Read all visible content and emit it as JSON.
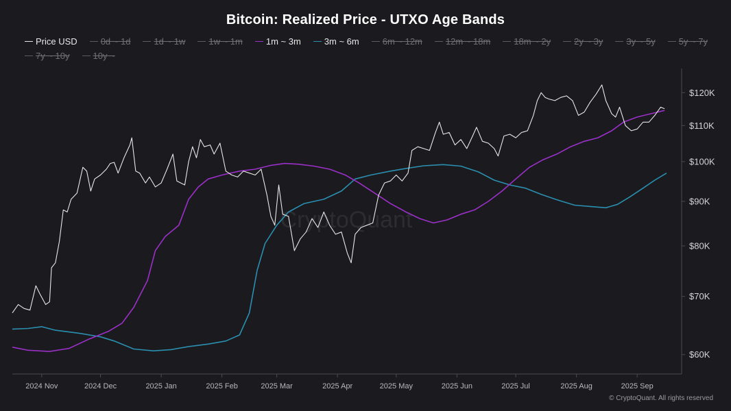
{
  "chart_data": {
    "type": "line",
    "title": "Bitcoin: Realized Price - UTXO Age Bands",
    "y_scale": "log",
    "ylim": [
      57000,
      127000
    ],
    "y_ticks": [
      {
        "value": 60000,
        "label": "$60K"
      },
      {
        "value": 70000,
        "label": "$70K"
      },
      {
        "value": 80000,
        "label": "$80K"
      },
      {
        "value": 90000,
        "label": "$90K"
      },
      {
        "value": 100000,
        "label": "$100K"
      },
      {
        "value": 110000,
        "label": "$110K"
      },
      {
        "value": 120000,
        "label": "$120K"
      }
    ],
    "x_range": [
      "2024-10-17",
      "2025-09-23"
    ],
    "x_ticks": [
      {
        "date": "2024-11-01",
        "label": "2024 Nov"
      },
      {
        "date": "2024-12-01",
        "label": "2024 Dec"
      },
      {
        "date": "2025-01-01",
        "label": "2025 Jan"
      },
      {
        "date": "2025-02-01",
        "label": "2025 Feb"
      },
      {
        "date": "2025-03-01",
        "label": "2025 Mar"
      },
      {
        "date": "2025-04-01",
        "label": "2025 Apr"
      },
      {
        "date": "2025-05-01",
        "label": "2025 May"
      },
      {
        "date": "2025-06-01",
        "label": "2025 Jun"
      },
      {
        "date": "2025-07-01",
        "label": "2025 Jul"
      },
      {
        "date": "2025-08-01",
        "label": "2025 Aug"
      },
      {
        "date": "2025-09-01",
        "label": "2025 Sep"
      }
    ],
    "grid": false,
    "legend_position": "top-left",
    "legend": [
      {
        "label": "Price USD",
        "color": "#e8e8e8",
        "visible": true
      },
      {
        "label": "0d ~ 1d",
        "color": "#888888",
        "visible": false
      },
      {
        "label": "1d ~ 1w",
        "color": "#888888",
        "visible": false
      },
      {
        "label": "1w ~ 1m",
        "color": "#888888",
        "visible": false
      },
      {
        "label": "1m ~ 3m",
        "color": "#9b30c9",
        "visible": true
      },
      {
        "label": "3m ~ 6m",
        "color": "#2a8fb0",
        "visible": true
      },
      {
        "label": "6m ~ 12m",
        "color": "#888888",
        "visible": false
      },
      {
        "label": "12m ~ 18m",
        "color": "#888888",
        "visible": false
      },
      {
        "label": "18m ~ 2y",
        "color": "#888888",
        "visible": false
      },
      {
        "label": "2y ~ 3y",
        "color": "#888888",
        "visible": false
      },
      {
        "label": "3y ~ 5y",
        "color": "#888888",
        "visible": false
      },
      {
        "label": "5y ~ 7y",
        "color": "#888888",
        "visible": false
      },
      {
        "label": "7y ~ 10y",
        "color": "#888888",
        "visible": false
      },
      {
        "label": "10y ~",
        "color": "#888888",
        "visible": false
      }
    ],
    "series": [
      {
        "name": "Price USD",
        "color": "#e8e8e8",
        "points": [
          [
            "2024-10-17",
            67000
          ],
          [
            "2024-10-20",
            68500
          ],
          [
            "2024-10-23",
            67800
          ],
          [
            "2024-10-26",
            67500
          ],
          [
            "2024-10-29",
            72000
          ],
          [
            "2024-10-31",
            70500
          ],
          [
            "2024-11-03",
            68500
          ],
          [
            "2024-11-05",
            69000
          ],
          [
            "2024-11-06",
            75500
          ],
          [
            "2024-11-08",
            76500
          ],
          [
            "2024-11-10",
            81000
          ],
          [
            "2024-11-12",
            88000
          ],
          [
            "2024-11-14",
            87500
          ],
          [
            "2024-11-16",
            90500
          ],
          [
            "2024-11-19",
            92000
          ],
          [
            "2024-11-22",
            98500
          ],
          [
            "2024-11-24",
            97500
          ],
          [
            "2024-11-26",
            92500
          ],
          [
            "2024-11-28",
            95500
          ],
          [
            "2024-12-01",
            96500
          ],
          [
            "2024-12-04",
            98000
          ],
          [
            "2024-12-06",
            99500
          ],
          [
            "2024-12-08",
            99800
          ],
          [
            "2024-12-10",
            97000
          ],
          [
            "2024-12-13",
            101000
          ],
          [
            "2024-12-16",
            104500
          ],
          [
            "2024-12-17",
            106500
          ],
          [
            "2024-12-19",
            97500
          ],
          [
            "2024-12-21",
            97000
          ],
          [
            "2024-12-24",
            94500
          ],
          [
            "2024-12-26",
            96000
          ],
          [
            "2024-12-29",
            93500
          ],
          [
            "2025-01-01",
            94500
          ],
          [
            "2025-01-04",
            98000
          ],
          [
            "2025-01-07",
            102000
          ],
          [
            "2025-01-09",
            95000
          ],
          [
            "2025-01-11",
            94500
          ],
          [
            "2025-01-13",
            94000
          ],
          [
            "2025-01-15",
            100000
          ],
          [
            "2025-01-17",
            104000
          ],
          [
            "2025-01-19",
            101000
          ],
          [
            "2025-01-21",
            106000
          ],
          [
            "2025-01-23",
            104000
          ],
          [
            "2025-01-26",
            104500
          ],
          [
            "2025-01-28",
            102000
          ],
          [
            "2025-01-31",
            105000
          ],
          [
            "2025-02-03",
            97500
          ],
          [
            "2025-02-06",
            96500
          ],
          [
            "2025-02-09",
            96000
          ],
          [
            "2025-02-12",
            97500
          ],
          [
            "2025-02-15",
            97000
          ],
          [
            "2025-02-18",
            96500
          ],
          [
            "2025-02-21",
            98000
          ],
          [
            "2025-02-24",
            91500
          ],
          [
            "2025-02-26",
            86500
          ],
          [
            "2025-02-28",
            84500
          ],
          [
            "2025-03-02",
            94000
          ],
          [
            "2025-03-04",
            87000
          ],
          [
            "2025-03-07",
            86500
          ],
          [
            "2025-03-10",
            79000
          ],
          [
            "2025-03-13",
            81500
          ],
          [
            "2025-03-16",
            83000
          ],
          [
            "2025-03-19",
            86000
          ],
          [
            "2025-03-22",
            84000
          ],
          [
            "2025-03-25",
            87500
          ],
          [
            "2025-03-28",
            84500
          ],
          [
            "2025-03-31",
            82500
          ],
          [
            "2025-04-03",
            83000
          ],
          [
            "2025-04-06",
            78500
          ],
          [
            "2025-04-08",
            76500
          ],
          [
            "2025-04-10",
            82500
          ],
          [
            "2025-04-13",
            84000
          ],
          [
            "2025-04-16",
            84500
          ],
          [
            "2025-04-19",
            85000
          ],
          [
            "2025-04-22",
            91500
          ],
          [
            "2025-04-25",
            94500
          ],
          [
            "2025-04-28",
            95000
          ],
          [
            "2025-05-01",
            96500
          ],
          [
            "2025-05-04",
            95000
          ],
          [
            "2025-05-07",
            97000
          ],
          [
            "2025-05-09",
            103000
          ],
          [
            "2025-05-12",
            104000
          ],
          [
            "2025-05-15",
            103500
          ],
          [
            "2025-05-18",
            103000
          ],
          [
            "2025-05-21",
            108000
          ],
          [
            "2025-05-23",
            111000
          ],
          [
            "2025-05-25",
            107500
          ],
          [
            "2025-05-28",
            108000
          ],
          [
            "2025-05-31",
            104500
          ],
          [
            "2025-06-03",
            106000
          ],
          [
            "2025-06-06",
            103500
          ],
          [
            "2025-06-09",
            107000
          ],
          [
            "2025-06-11",
            109500
          ],
          [
            "2025-06-14",
            105500
          ],
          [
            "2025-06-17",
            105000
          ],
          [
            "2025-06-20",
            103500
          ],
          [
            "2025-06-22",
            101500
          ],
          [
            "2025-06-25",
            107000
          ],
          [
            "2025-06-28",
            107500
          ],
          [
            "2025-07-01",
            106500
          ],
          [
            "2025-07-04",
            108000
          ],
          [
            "2025-07-07",
            108500
          ],
          [
            "2025-07-10",
            113000
          ],
          [
            "2025-07-12",
            117500
          ],
          [
            "2025-07-14",
            120000
          ],
          [
            "2025-07-16",
            118500
          ],
          [
            "2025-07-18",
            118000
          ],
          [
            "2025-07-21",
            117500
          ],
          [
            "2025-07-24",
            118500
          ],
          [
            "2025-07-27",
            119000
          ],
          [
            "2025-07-30",
            117500
          ],
          [
            "2025-08-02",
            113000
          ],
          [
            "2025-08-05",
            114000
          ],
          [
            "2025-08-08",
            117000
          ],
          [
            "2025-08-11",
            119500
          ],
          [
            "2025-08-14",
            122500
          ],
          [
            "2025-08-16",
            117500
          ],
          [
            "2025-08-19",
            113500
          ],
          [
            "2025-08-21",
            112500
          ],
          [
            "2025-08-23",
            115500
          ],
          [
            "2025-08-26",
            110000
          ],
          [
            "2025-08-29",
            108500
          ],
          [
            "2025-09-01",
            109000
          ],
          [
            "2025-09-04",
            111000
          ],
          [
            "2025-09-07",
            111000
          ],
          [
            "2025-09-10",
            113000
          ],
          [
            "2025-09-13",
            115500
          ],
          [
            "2025-09-15",
            115000
          ]
        ]
      },
      {
        "name": "1m ~ 3m",
        "color": "#9b30c9",
        "points": [
          [
            "2024-10-17",
            61200
          ],
          [
            "2024-10-25",
            60700
          ],
          [
            "2024-11-05",
            60500
          ],
          [
            "2024-11-15",
            61000
          ],
          [
            "2024-11-25",
            62500
          ],
          [
            "2024-12-05",
            63800
          ],
          [
            "2024-12-12",
            65200
          ],
          [
            "2024-12-18",
            68000
          ],
          [
            "2024-12-25",
            73000
          ],
          [
            "2024-12-29",
            79000
          ],
          [
            "2025-01-03",
            82000
          ],
          [
            "2025-01-10",
            84500
          ],
          [
            "2025-01-15",
            90500
          ],
          [
            "2025-01-20",
            93500
          ],
          [
            "2025-01-25",
            95500
          ],
          [
            "2025-02-01",
            96500
          ],
          [
            "2025-02-10",
            97500
          ],
          [
            "2025-02-18",
            98000
          ],
          [
            "2025-02-26",
            99000
          ],
          [
            "2025-03-05",
            99500
          ],
          [
            "2025-03-12",
            99300
          ],
          [
            "2025-03-20",
            98800
          ],
          [
            "2025-03-28",
            98000
          ],
          [
            "2025-04-05",
            96500
          ],
          [
            "2025-04-12",
            94500
          ],
          [
            "2025-04-20",
            92000
          ],
          [
            "2025-04-28",
            89500
          ],
          [
            "2025-05-06",
            87500
          ],
          [
            "2025-05-13",
            86000
          ],
          [
            "2025-05-20",
            85000
          ],
          [
            "2025-05-27",
            85700
          ],
          [
            "2025-06-03",
            87000
          ],
          [
            "2025-06-10",
            88000
          ],
          [
            "2025-06-17",
            90000
          ],
          [
            "2025-06-24",
            92500
          ],
          [
            "2025-07-01",
            95500
          ],
          [
            "2025-07-08",
            98500
          ],
          [
            "2025-07-15",
            100500
          ],
          [
            "2025-07-22",
            102000
          ],
          [
            "2025-07-29",
            104000
          ],
          [
            "2025-08-05",
            105500
          ],
          [
            "2025-08-12",
            106500
          ],
          [
            "2025-08-19",
            108500
          ],
          [
            "2025-08-25",
            111000
          ],
          [
            "2025-09-01",
            112500
          ],
          [
            "2025-09-08",
            113500
          ],
          [
            "2025-09-15",
            114500
          ]
        ]
      },
      {
        "name": "3m ~ 6m",
        "color": "#2a8fb0",
        "points": [
          [
            "2024-10-17",
            64200
          ],
          [
            "2024-10-25",
            64300
          ],
          [
            "2024-11-01",
            64600
          ],
          [
            "2024-11-08",
            64000
          ],
          [
            "2024-11-20",
            63500
          ],
          [
            "2024-12-01",
            62900
          ],
          [
            "2024-12-08",
            62200
          ],
          [
            "2024-12-18",
            60900
          ],
          [
            "2024-12-28",
            60600
          ],
          [
            "2025-01-06",
            60800
          ],
          [
            "2025-01-15",
            61300
          ],
          [
            "2025-01-25",
            61700
          ],
          [
            "2025-02-03",
            62200
          ],
          [
            "2025-02-10",
            63200
          ],
          [
            "2025-02-15",
            67000
          ],
          [
            "2025-02-19",
            75000
          ],
          [
            "2025-02-23",
            80500
          ],
          [
            "2025-03-01",
            84500
          ],
          [
            "2025-03-07",
            87500
          ],
          [
            "2025-03-15",
            89500
          ],
          [
            "2025-03-25",
            90500
          ],
          [
            "2025-04-03",
            92500
          ],
          [
            "2025-04-10",
            95500
          ],
          [
            "2025-04-18",
            96500
          ],
          [
            "2025-04-28",
            97500
          ],
          [
            "2025-05-06",
            98200
          ],
          [
            "2025-05-15",
            98900
          ],
          [
            "2025-05-25",
            99200
          ],
          [
            "2025-06-03",
            98800
          ],
          [
            "2025-06-12",
            97300
          ],
          [
            "2025-06-20",
            95200
          ],
          [
            "2025-06-28",
            94000
          ],
          [
            "2025-07-06",
            93200
          ],
          [
            "2025-07-14",
            91700
          ],
          [
            "2025-07-22",
            90400
          ],
          [
            "2025-07-31",
            89100
          ],
          [
            "2025-08-08",
            88800
          ],
          [
            "2025-08-16",
            88500
          ],
          [
            "2025-08-22",
            89300
          ],
          [
            "2025-08-28",
            91000
          ],
          [
            "2025-09-04",
            93200
          ],
          [
            "2025-09-10",
            95200
          ],
          [
            "2025-09-16",
            97000
          ]
        ]
      }
    ],
    "watermark": "CryptoQuant",
    "source": "© CryptoQuant. All rights reserved"
  }
}
